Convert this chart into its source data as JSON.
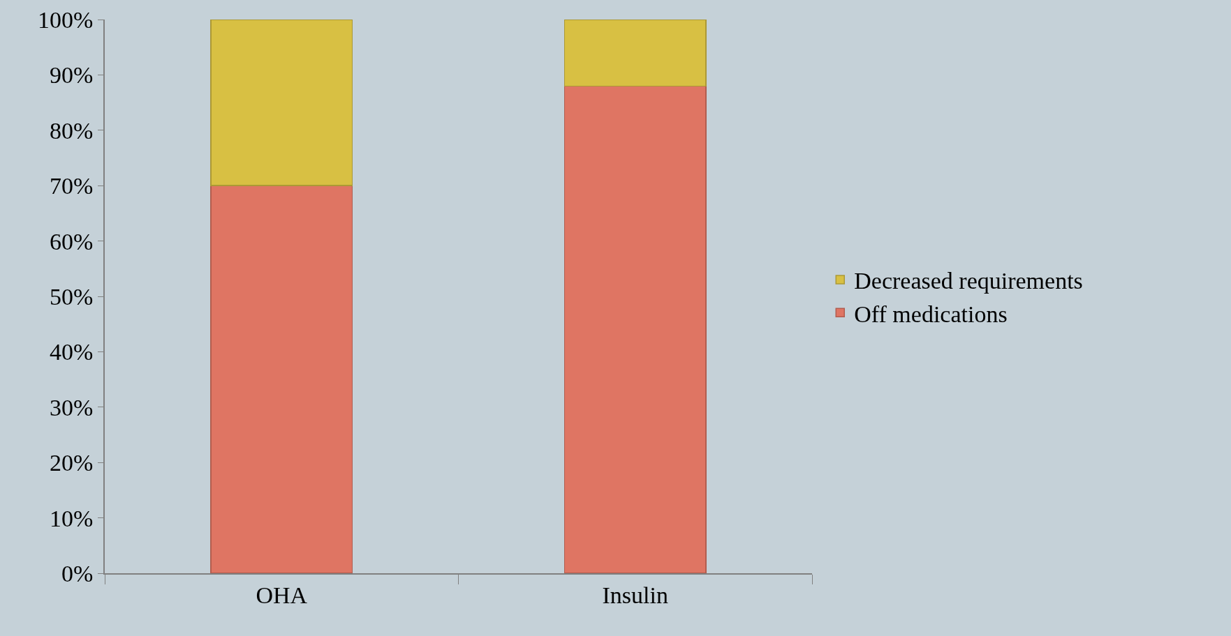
{
  "chart_data": {
    "type": "bar",
    "stacked": true,
    "categories": [
      "OHA",
      "Insulin"
    ],
    "series": [
      {
        "name": "Off medications",
        "color": "#df7563",
        "values": [
          70,
          88
        ]
      },
      {
        "name": "Decreased requirements",
        "color": "#d8c043",
        "values": [
          30,
          12
        ]
      }
    ],
    "ylim": [
      0,
      100
    ],
    "yticks": [
      {
        "value": 0,
        "label": "0%"
      },
      {
        "value": 10,
        "label": "10%"
      },
      {
        "value": 20,
        "label": "20%"
      },
      {
        "value": 30,
        "label": "30%"
      },
      {
        "value": 40,
        "label": "40%"
      },
      {
        "value": 50,
        "label": "50%"
      },
      {
        "value": 60,
        "label": "60%"
      },
      {
        "value": 70,
        "label": "70%"
      },
      {
        "value": 80,
        "label": "80%"
      },
      {
        "value": 90,
        "label": "90%"
      },
      {
        "value": 100,
        "label": "100%"
      }
    ],
    "grid": false,
    "legend": "right"
  }
}
